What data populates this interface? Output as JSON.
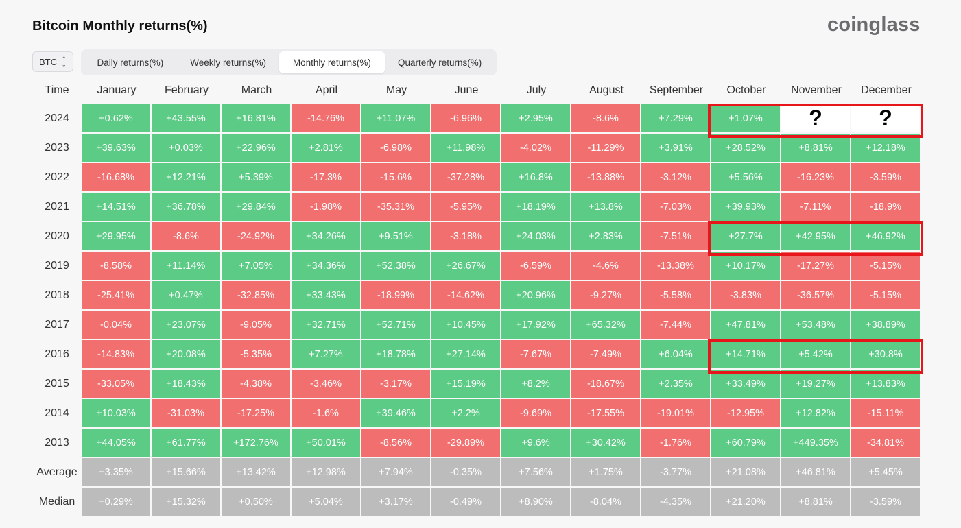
{
  "title": "Bitcoin Monthly returns(%)",
  "brand": "coinglass",
  "asset_select": {
    "value": "BTC"
  },
  "tabs": [
    {
      "label": "Daily returns(%)",
      "active": false
    },
    {
      "label": "Weekly returns(%)",
      "active": false
    },
    {
      "label": "Monthly returns(%)",
      "active": true
    },
    {
      "label": "Quarterly returns(%)",
      "active": false
    }
  ],
  "columns": [
    "Time",
    "January",
    "February",
    "March",
    "April",
    "May",
    "June",
    "July",
    "August",
    "September",
    "October",
    "November",
    "December"
  ],
  "rows": [
    {
      "label": "2024",
      "values": [
        "+0.62%",
        "+43.55%",
        "+16.81%",
        "-14.76%",
        "+11.07%",
        "-6.96%",
        "+2.95%",
        "-8.6%",
        "+7.29%",
        "+1.07%",
        "?",
        "?"
      ]
    },
    {
      "label": "2023",
      "values": [
        "+39.63%",
        "+0.03%",
        "+22.96%",
        "+2.81%",
        "-6.98%",
        "+11.98%",
        "-4.02%",
        "-11.29%",
        "+3.91%",
        "+28.52%",
        "+8.81%",
        "+12.18%"
      ]
    },
    {
      "label": "2022",
      "values": [
        "-16.68%",
        "+12.21%",
        "+5.39%",
        "-17.3%",
        "-15.6%",
        "-37.28%",
        "+16.8%",
        "-13.88%",
        "-3.12%",
        "+5.56%",
        "-16.23%",
        "-3.59%"
      ]
    },
    {
      "label": "2021",
      "values": [
        "+14.51%",
        "+36.78%",
        "+29.84%",
        "-1.98%",
        "-35.31%",
        "-5.95%",
        "+18.19%",
        "+13.8%",
        "-7.03%",
        "+39.93%",
        "-7.11%",
        "-18.9%"
      ]
    },
    {
      "label": "2020",
      "values": [
        "+29.95%",
        "-8.6%",
        "-24.92%",
        "+34.26%",
        "+9.51%",
        "-3.18%",
        "+24.03%",
        "+2.83%",
        "-7.51%",
        "+27.7%",
        "+42.95%",
        "+46.92%"
      ]
    },
    {
      "label": "2019",
      "values": [
        "-8.58%",
        "+11.14%",
        "+7.05%",
        "+34.36%",
        "+52.38%",
        "+26.67%",
        "-6.59%",
        "-4.6%",
        "-13.38%",
        "+10.17%",
        "-17.27%",
        "-5.15%"
      ]
    },
    {
      "label": "2018",
      "values": [
        "-25.41%",
        "+0.47%",
        "-32.85%",
        "+33.43%",
        "-18.99%",
        "-14.62%",
        "+20.96%",
        "-9.27%",
        "-5.58%",
        "-3.83%",
        "-36.57%",
        "-5.15%"
      ]
    },
    {
      "label": "2017",
      "values": [
        "-0.04%",
        "+23.07%",
        "-9.05%",
        "+32.71%",
        "+52.71%",
        "+10.45%",
        "+17.92%",
        "+65.32%",
        "-7.44%",
        "+47.81%",
        "+53.48%",
        "+38.89%"
      ]
    },
    {
      "label": "2016",
      "values": [
        "-14.83%",
        "+20.08%",
        "-5.35%",
        "+7.27%",
        "+18.78%",
        "+27.14%",
        "-7.67%",
        "-7.49%",
        "+6.04%",
        "+14.71%",
        "+5.42%",
        "+30.8%"
      ]
    },
    {
      "label": "2015",
      "values": [
        "-33.05%",
        "+18.43%",
        "-4.38%",
        "-3.46%",
        "-3.17%",
        "+15.19%",
        "+8.2%",
        "-18.67%",
        "+2.35%",
        "+33.49%",
        "+19.27%",
        "+13.83%"
      ]
    },
    {
      "label": "2014",
      "values": [
        "+10.03%",
        "-31.03%",
        "-17.25%",
        "-1.6%",
        "+39.46%",
        "+2.2%",
        "-9.69%",
        "-17.55%",
        "-19.01%",
        "-12.95%",
        "+12.82%",
        "-15.11%"
      ]
    },
    {
      "label": "2013",
      "values": [
        "+44.05%",
        "+61.77%",
        "+172.76%",
        "+50.01%",
        "-8.56%",
        "-29.89%",
        "+9.6%",
        "+30.42%",
        "-1.76%",
        "+60.79%",
        "+449.35%",
        "-34.81%"
      ]
    }
  ],
  "summary_rows": [
    {
      "label": "Average",
      "values": [
        "+3.35%",
        "+15.66%",
        "+13.42%",
        "+12.98%",
        "+7.94%",
        "-0.35%",
        "+7.56%",
        "+1.75%",
        "-3.77%",
        "+21.08%",
        "+46.81%",
        "+5.45%"
      ]
    },
    {
      "label": "Median",
      "values": [
        "+0.29%",
        "+15.32%",
        "+0.50%",
        "+5.04%",
        "+3.17%",
        "-0.49%",
        "+8.90%",
        "-8.04%",
        "-4.35%",
        "+21.20%",
        "+8.81%",
        "-3.59%"
      ]
    }
  ],
  "highlights": [
    {
      "year": "2024",
      "months": [
        "October",
        "November",
        "December"
      ]
    },
    {
      "year": "2020",
      "months": [
        "October",
        "November",
        "December"
      ]
    },
    {
      "year": "2016",
      "months": [
        "October",
        "November",
        "December"
      ]
    }
  ],
  "colors": {
    "positive": "#5ccb85",
    "negative": "#f26f6f",
    "summary": "#bcbcbc",
    "highlight": "#e6161b"
  }
}
